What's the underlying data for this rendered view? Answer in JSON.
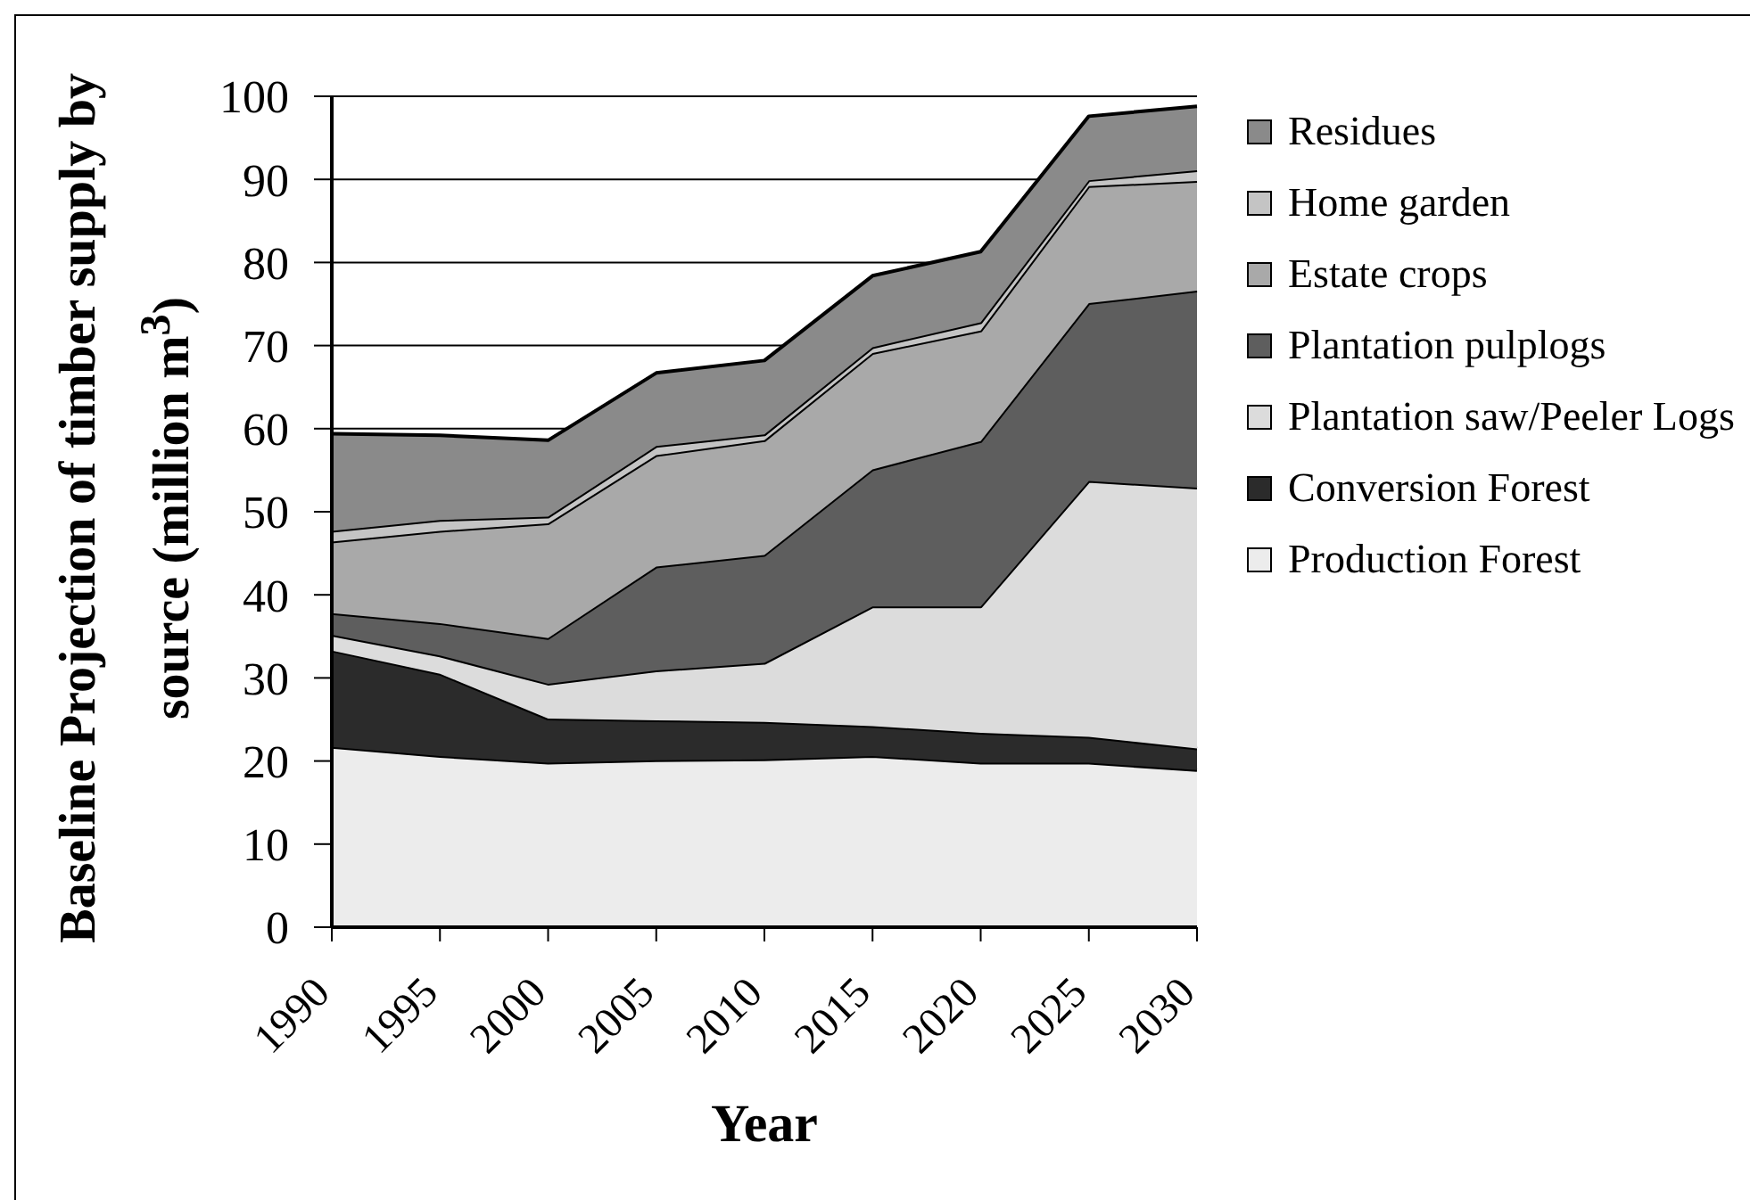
{
  "chart_data": {
    "type": "area",
    "stacked": true,
    "categories": [
      "1990",
      "1995",
      "2000",
      "2005",
      "2010",
      "2015",
      "2020",
      "2025",
      "2030"
    ],
    "series": [
      {
        "name": "Production Forest",
        "color": "#ececec",
        "values": [
          21.7,
          20.6,
          19.8,
          20.1,
          20.2,
          20.6,
          19.8,
          19.8,
          18.9
        ]
      },
      {
        "name": "Conversion Forest",
        "color": "#2b2b2b",
        "values": [
          11.6,
          9.9,
          5.3,
          4.8,
          4.5,
          3.6,
          3.6,
          3.1,
          2.6
        ]
      },
      {
        "name": "Plantation saw/Peeler Logs",
        "color": "#dcdcdc",
        "values": [
          1.9,
          2.2,
          4.2,
          6.0,
          7.1,
          14.4,
          15.2,
          30.8,
          31.4
        ]
      },
      {
        "name": "Plantation pulplogs",
        "color": "#5e5e5e",
        "values": [
          2.6,
          3.9,
          5.5,
          12.5,
          13.0,
          16.5,
          19.9,
          21.4,
          23.7
        ]
      },
      {
        "name": "Estate crops",
        "color": "#a9a9a9",
        "values": [
          8.6,
          11.1,
          13.8,
          13.4,
          13.8,
          14.0,
          13.3,
          14.1,
          13.2
        ]
      },
      {
        "name": "Home garden",
        "color": "#c4c4c4",
        "values": [
          1.3,
          1.3,
          0.8,
          1.1,
          0.7,
          0.7,
          1.0,
          0.7,
          1.3
        ]
      },
      {
        "name": "Residues",
        "color": "#8a8a8a",
        "values": [
          11.7,
          10.2,
          9.2,
          8.8,
          8.9,
          8.6,
          8.5,
          7.7,
          7.7
        ]
      }
    ],
    "xlabel": "Year",
    "ylabel": "Baseline Projection of timber supply by source (million m$^{3}$)",
    "ylim": [
      0,
      100
    ],
    "yticks": [
      0,
      10,
      20,
      30,
      40,
      50,
      60,
      70,
      80,
      90,
      100
    ],
    "grid": "y",
    "legend": "right"
  }
}
